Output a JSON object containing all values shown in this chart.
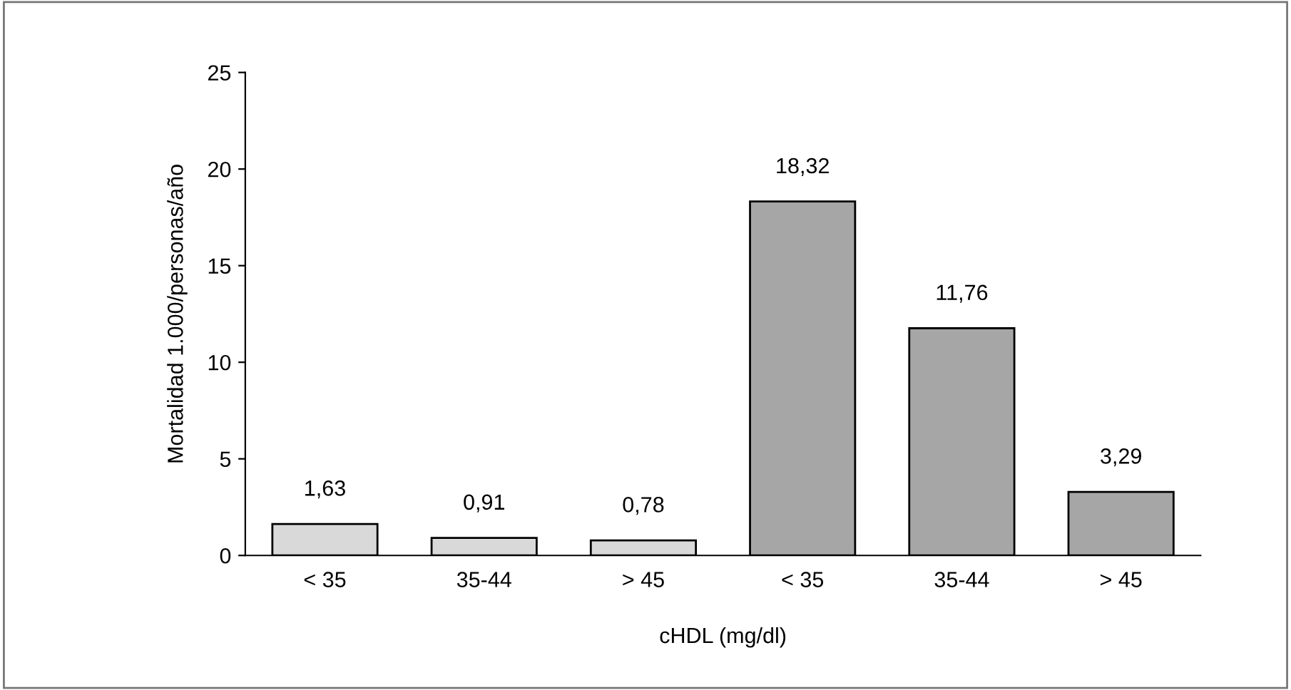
{
  "chart_data": {
    "type": "bar",
    "categories": [
      "< 35",
      "35-44",
      "> 45",
      "< 35",
      "35-44",
      "> 45"
    ],
    "values": [
      1.63,
      0.91,
      0.78,
      18.32,
      11.76,
      3.29
    ],
    "colors": [
      "#d9d9d9",
      "#d9d9d9",
      "#d9d9d9",
      "#a6a6a6",
      "#a6a6a6",
      "#a6a6a6"
    ],
    "value_labels": [
      "1,63",
      "0,91",
      "0,78",
      "18,32",
      "11,76",
      "3,29"
    ],
    "xlabel": "cHDL (mg/dl)",
    "ylabel": "Mortalidad 1.000/personas/año",
    "ylim": [
      0,
      25
    ],
    "yticks": [
      0,
      5,
      10,
      15,
      20,
      25
    ],
    "grid": false,
    "legend": false
  }
}
